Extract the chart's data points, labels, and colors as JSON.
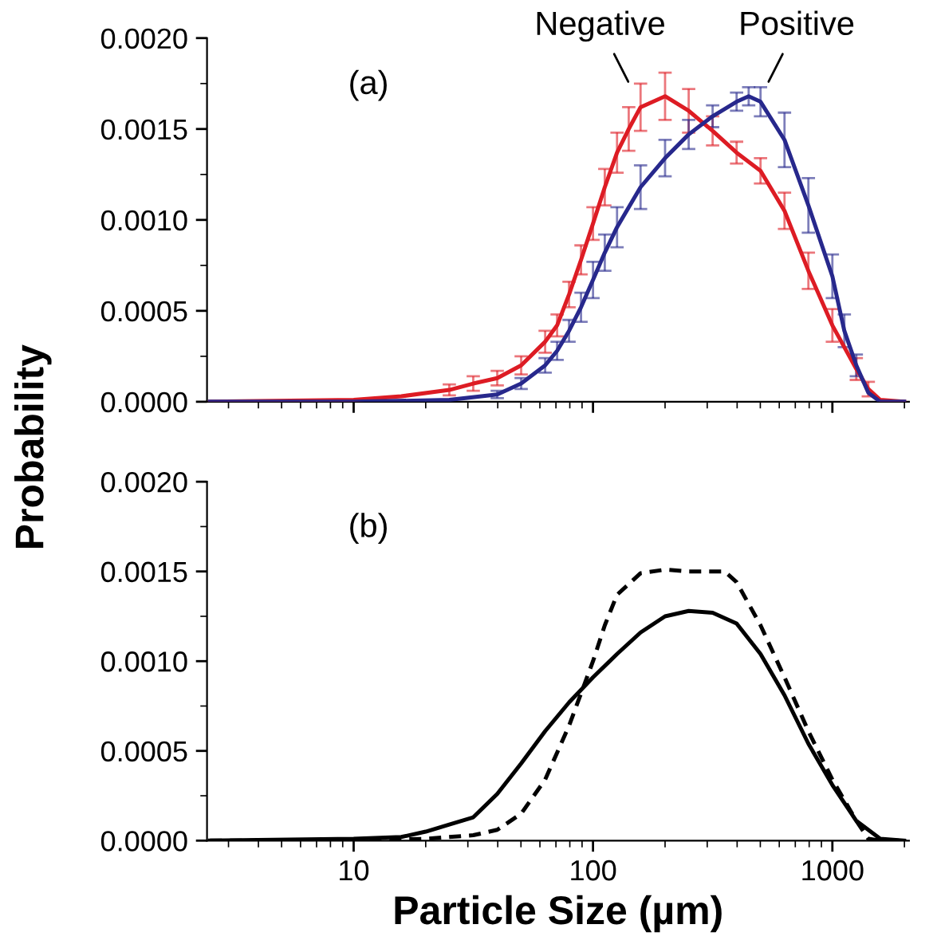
{
  "chart_data": [
    {
      "type": "line",
      "title": "(a)",
      "ylabel": "Probability",
      "log": "x",
      "xlim": [
        2.44,
        2090
      ],
      "xticks": [
        10,
        100,
        1000
      ],
      "ylim": [
        0,
        0.002
      ],
      "yticks": [
        {
          "value": 0,
          "label": "0.0000"
        },
        {
          "value": 0.0005,
          "label": "0.0005"
        },
        {
          "value": 0.001,
          "label": "0.0010"
        },
        {
          "value": 0.0015,
          "label": "0.0015"
        },
        {
          "value": 0.002,
          "label": "0.0020"
        }
      ],
      "tick_labels": "y",
      "grid": false,
      "annotations": [
        "Negative",
        "Positive"
      ],
      "series": [
        {
          "color": "#dd1c24",
          "x": [
            2.51,
            10,
            15.8,
            25.1,
            31.6,
            39.8,
            50.1,
            63.1,
            70.8,
            79.4,
            89.1,
            100,
            112,
            126,
            141,
            158,
            200,
            251,
            316,
            398,
            501,
            631,
            794,
            1000,
            1259,
            1413,
            1585,
            1995
          ],
          "values": [
            0,
            1e-05,
            3e-05,
            6.5e-05,
            0.0001,
            0.00013,
            0.0002,
            0.00033,
            0.00042,
            0.00059,
            0.00078,
            0.00098,
            0.00118,
            0.00137,
            0.0015,
            0.00162,
            0.00168,
            0.0016,
            0.00149,
            0.00137,
            0.00127,
            0.00105,
            0.00072,
            0.00042,
            0.00018,
            7e-05,
            1e-05,
            0
          ],
          "errors": [
            null,
            null,
            null,
            3e-05,
            4e-05,
            4e-05,
            5e-05,
            6e-05,
            6e-05,
            7e-05,
            8e-05,
            9e-05,
            0.0001,
            0.00011,
            0.00012,
            0.00013,
            0.00013,
            0.00012,
            8e-05,
            6e-05,
            7e-05,
            0.0001,
            0.0001,
            9e-05,
            6e-05,
            4e-05,
            null,
            null
          ]
        },
        {
          "color": "#27288c",
          "x": [
            2.51,
            10,
            25.1,
            39.8,
            50.1,
            63.1,
            70.8,
            79.4,
            89.1,
            100,
            112,
            126,
            158,
            200,
            251,
            316,
            398,
            447,
            501,
            631,
            794,
            1000,
            1122,
            1259,
            1413,
            1585,
            1995
          ],
          "values": [
            0,
            0,
            1e-05,
            4e-05,
            0.0001,
            0.0002,
            0.00028,
            0.00039,
            0.00052,
            0.00067,
            0.00082,
            0.00096,
            0.00118,
            0.00134,
            0.00147,
            0.00157,
            0.00165,
            0.00168,
            0.00165,
            0.00144,
            0.00108,
            0.00069,
            0.00039,
            0.0002,
            5e-05,
            0,
            0
          ],
          "errors": [
            null,
            null,
            null,
            2e-05,
            3e-05,
            4e-05,
            5e-05,
            6e-05,
            8e-05,
            0.0001,
            0.0001,
            0.00011,
            0.00012,
            0.0001,
            8e-05,
            6e-05,
            5e-05,
            5e-05,
            8e-05,
            0.00015,
            0.00015,
            0.00012,
            9e-05,
            6e-05,
            null,
            null,
            null
          ]
        }
      ]
    },
    {
      "type": "line",
      "title": "(b)",
      "xlabel": "Particle Size (µm)",
      "log": "x",
      "xlim": [
        2.44,
        2090
      ],
      "xticks": [
        10,
        100,
        1000
      ],
      "ylim": [
        0,
        0.002
      ],
      "yticks": [
        {
          "value": 0,
          "label": "0.0000"
        },
        {
          "value": 0.0005,
          "label": "0.0005"
        },
        {
          "value": 0.001,
          "label": "0.0010"
        },
        {
          "value": 0.0015,
          "label": "0.0015"
        },
        {
          "value": 0.002,
          "label": "0.0020"
        }
      ],
      "grid": false,
      "series": [
        {
          "color": "#000000",
          "line_style": "solid",
          "x": [
            2.51,
            10,
            15.8,
            20.0,
            25.1,
            31.6,
            39.8,
            50.1,
            63.1,
            79.4,
            100,
            126,
            158,
            200,
            251,
            316,
            398,
            501,
            631,
            794,
            1000,
            1259,
            1585,
            1995
          ],
          "values": [
            0,
            1e-05,
            2e-05,
            5e-05,
            9e-05,
            0.00013,
            0.00026,
            0.00043,
            0.00061,
            0.00077,
            0.00091,
            0.00104,
            0.00116,
            0.00125,
            0.00128,
            0.00127,
            0.00121,
            0.00104,
            0.00081,
            0.00054,
            0.00031,
            0.00011,
            1e-05,
            0
          ]
        },
        {
          "color": "#000000",
          "line_style": "dashed",
          "x": [
            2.51,
            10,
            20.0,
            31.6,
            39.8,
            50.1,
            63.1,
            79.4,
            100,
            112,
            126,
            158,
            200,
            251,
            355,
            398,
            501,
            631,
            794,
            1000,
            1259,
            1413,
            1585,
            1995
          ],
          "values": [
            0,
            0,
            1e-05,
            3e-05,
            6e-05,
            0.00015,
            0.00034,
            0.00064,
            0.001,
            0.0012,
            0.00137,
            0.00149,
            0.00151,
            0.0015,
            0.0015,
            0.00144,
            0.0012,
            0.00091,
            0.00061,
            0.00034,
            0.00011,
            1e-05,
            0,
            0
          ]
        }
      ]
    }
  ]
}
